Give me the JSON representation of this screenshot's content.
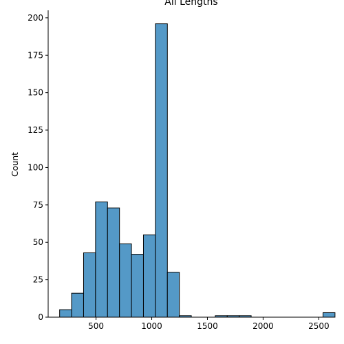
{
  "chart_data": {
    "type": "bar",
    "title": "All Lengths",
    "xlabel": "",
    "ylabel": "Count",
    "xlim": [
      70,
      2640
    ],
    "ylim": [
      0,
      205
    ],
    "xticks": [
      500,
      1000,
      1500,
      2000,
      2500
    ],
    "yticks": [
      0,
      25,
      50,
      75,
      100,
      125,
      150,
      175,
      200
    ],
    "bin_width": 107.5,
    "bin_edges": [
      173,
      280.5,
      388,
      495.5,
      603,
      710.5,
      818,
      925.5,
      1033,
      1140.5,
      1248,
      1355.5,
      1463,
      1570.5,
      1678,
      1785.5,
      1893,
      2000.5,
      2108,
      2215.5,
      2323,
      2430.5,
      2538
    ],
    "counts": [
      5,
      16,
      43,
      77,
      73,
      49,
      42,
      55,
      196,
      30,
      1,
      0,
      0,
      1,
      1,
      1,
      0,
      0,
      0,
      0,
      0,
      0,
      3
    ],
    "grid": false,
    "legend": "none",
    "colors": {
      "bar_fill": "#5499c7",
      "bar_edge": "#000000",
      "axis": "#000000"
    }
  }
}
